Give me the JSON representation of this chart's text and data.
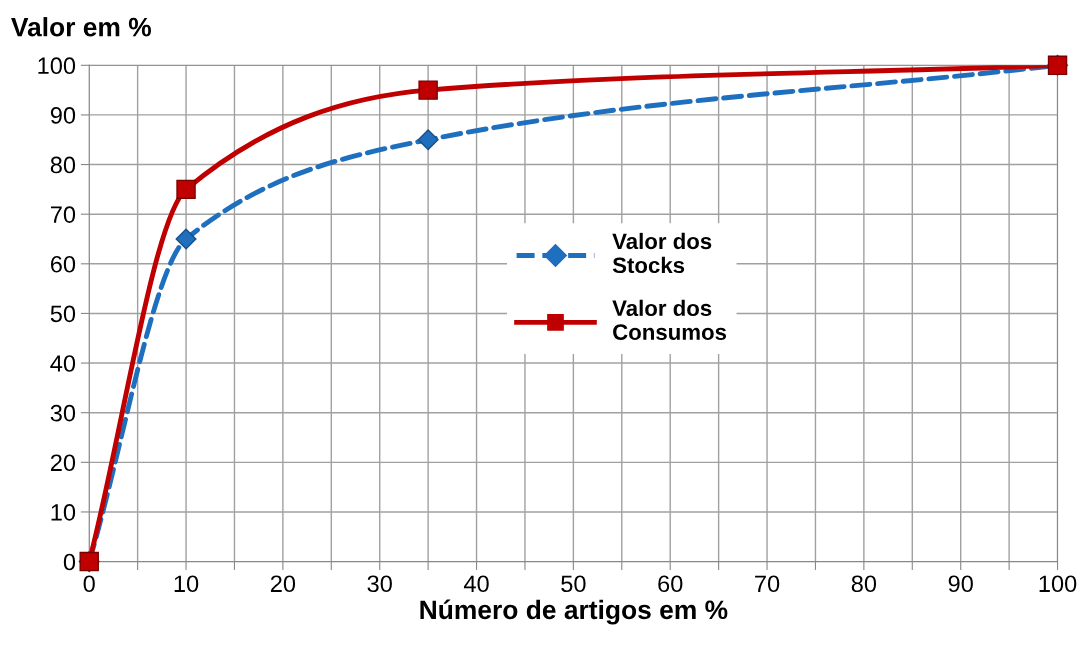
{
  "chart_data": {
    "type": "line",
    "xlabel": "Número de artigos em %",
    "ylabel": "Valor em %",
    "x": [
      0,
      10,
      35,
      100
    ],
    "series": [
      {
        "name": "Valor dos Stocks",
        "color": "#1f6fbf",
        "values": [
          0,
          65,
          85,
          100
        ],
        "marker": "diamond",
        "line_style": "dashed"
      },
      {
        "name": "Valor dos Consumos",
        "color": "#c00000",
        "values": [
          0,
          75,
          95,
          100
        ],
        "marker": "square",
        "line_style": "solid"
      }
    ],
    "xlim": [
      0,
      100
    ],
    "ylim": [
      0,
      100
    ],
    "xticks": [
      0,
      {
        "value": 5,
        "label": null
      },
      10,
      {
        "value": 15,
        "label": null
      },
      20,
      {
        "value": 25,
        "label": null
      },
      30,
      {
        "value": 35,
        "label": null
      },
      40,
      {
        "value": 45,
        "label": null
      },
      50,
      {
        "value": 55,
        "label": null
      },
      60,
      {
        "value": 65,
        "label": null
      },
      70,
      {
        "value": 75,
        "label": null
      },
      80,
      {
        "value": 85,
        "label": null
      },
      90,
      {
        "value": 95,
        "label": null
      },
      100
    ],
    "yticks": [
      0,
      10,
      20,
      30,
      40,
      50,
      60,
      70,
      80,
      90,
      100
    ],
    "grid": true,
    "legend": "center"
  }
}
